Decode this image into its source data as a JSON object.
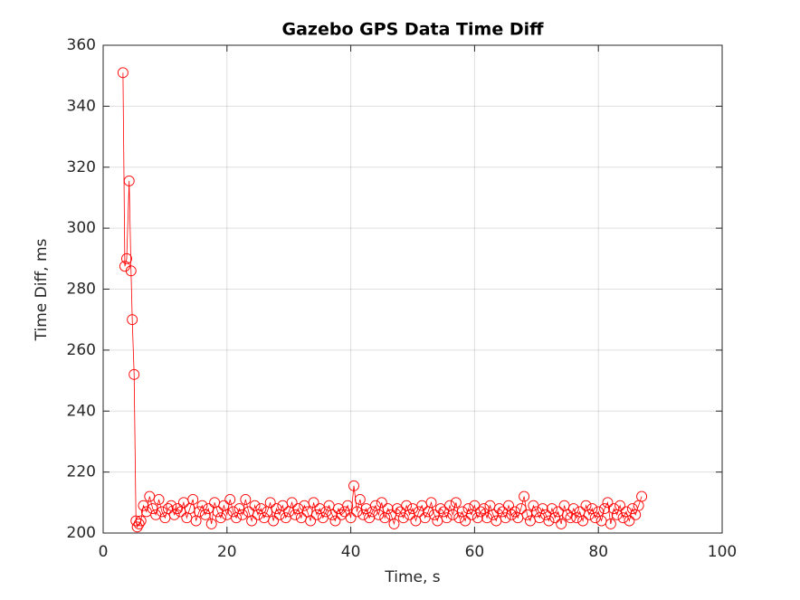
{
  "chart_data": {
    "type": "line",
    "title": "Gazebo GPS Data Time Diff",
    "x_label": "Time, s",
    "y_label": "Time Diff, ms",
    "xlim": [
      0,
      100
    ],
    "xticks": [
      0,
      20,
      40,
      60,
      80,
      100
    ],
    "ylim": [
      200,
      360
    ],
    "yticks": [
      200,
      220,
      240,
      260,
      280,
      300,
      320,
      340,
      360
    ],
    "grid": true,
    "marker": "circle",
    "x": [
      3.2,
      3.5,
      3.8,
      4.2,
      4.5,
      4.7,
      5.0,
      5.3,
      5.5,
      5.8,
      6.1,
      6.5,
      7,
      7.5,
      8,
      8.5,
      9,
      9.5,
      10,
      10.5,
      11,
      11.5,
      12,
      12.5,
      13,
      13.5,
      14,
      14.5,
      15,
      15.5,
      16,
      16.5,
      17,
      17.5,
      18,
      18.5,
      19,
      19.5,
      20,
      20.5,
      21,
      21.5,
      22,
      22.5,
      23,
      23.5,
      24,
      24.5,
      25,
      25.5,
      26,
      26.5,
      27,
      27.5,
      28,
      28.5,
      29,
      29.5,
      30,
      30.5,
      31,
      31.5,
      32,
      32.5,
      33,
      33.5,
      34,
      34.5,
      35,
      35.5,
      36,
      36.5,
      37,
      37.5,
      38,
      38.5,
      39,
      39.5,
      40,
      40.5,
      41,
      41.5,
      42,
      42.5,
      43,
      43.5,
      44,
      44.5,
      45,
      45.5,
      46,
      46.5,
      47,
      47.5,
      48,
      48.5,
      49,
      49.5,
      50,
      50.5,
      51,
      51.5,
      52,
      52.5,
      53,
      53.5,
      54,
      54.5,
      55,
      55.5,
      56,
      56.5,
      57,
      57.5,
      58,
      58.5,
      59,
      59.5,
      60,
      60.5,
      61,
      61.5,
      62,
      62.5,
      63,
      63.5,
      64,
      64.5,
      65,
      65.5,
      66,
      66.5,
      67,
      67.5,
      68,
      68.5,
      69,
      69.5,
      70,
      70.5,
      71,
      71.5,
      72,
      72.5,
      73,
      73.5,
      74,
      74.5,
      75,
      75.5,
      76,
      76.5,
      77,
      77.5,
      78,
      78.5,
      79,
      79.5,
      80,
      80.5,
      81,
      81.5,
      82,
      82.5,
      83,
      83.5,
      84,
      84.5,
      85,
      85.5,
      86,
      86.5,
      87
    ],
    "series": [
      {
        "color": "#ff0000",
        "values": [
          351,
          287.5,
          290,
          315.5,
          286,
          270,
          252,
          204,
          202,
          203,
          204,
          209,
          207,
          212,
          208,
          206,
          211,
          207,
          205,
          208,
          209,
          206,
          208,
          207,
          210,
          205,
          208,
          211,
          204,
          207,
          209,
          206,
          208,
          203,
          210,
          207,
          205,
          209,
          206,
          211,
          207,
          205,
          208,
          206,
          211,
          207,
          204,
          209,
          206,
          208,
          205,
          207,
          210,
          204,
          208,
          206,
          209,
          205,
          207,
          210,
          206,
          208,
          205,
          209,
          207,
          204,
          210,
          206,
          208,
          205,
          207,
          209,
          206,
          204,
          208,
          206,
          207,
          209,
          205,
          215.5,
          207,
          211,
          206,
          208,
          205,
          207,
          209,
          206,
          210,
          205,
          208,
          206,
          203,
          208,
          207,
          205,
          209,
          206,
          208,
          204,
          207,
          209,
          205,
          207,
          210,
          206,
          204,
          208,
          207,
          205,
          209,
          206,
          210,
          205,
          207,
          204,
          208,
          206,
          209,
          205,
          207,
          208,
          205,
          209,
          206,
          204,
          208,
          207,
          205,
          209,
          206,
          207,
          205,
          208,
          212,
          206,
          204,
          209,
          207,
          205,
          208,
          206,
          204,
          208,
          205,
          207,
          203,
          209,
          206,
          205,
          208,
          205,
          207,
          204,
          209,
          206,
          208,
          205,
          207,
          204,
          208,
          210,
          203,
          208,
          206,
          209,
          205,
          207,
          204,
          208,
          206,
          209,
          212
        ]
      }
    ]
  }
}
